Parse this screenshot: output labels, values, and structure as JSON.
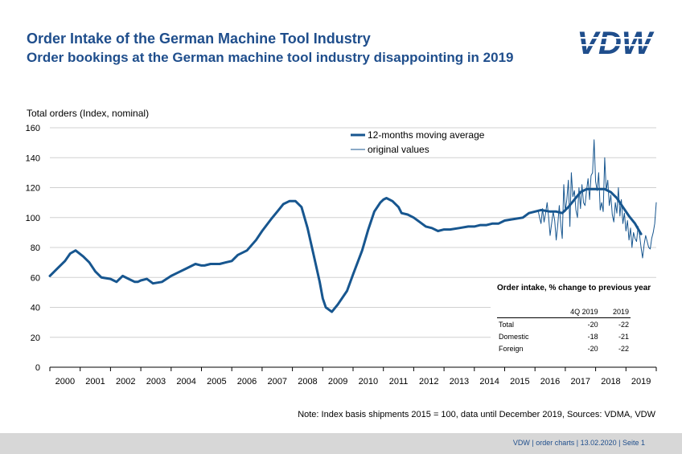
{
  "header": {
    "title": "Order Intake of the German Machine Tool Industry",
    "subtitle": "Order bookings at the German machine tool industry disappointing in 2019",
    "logo_text": "VDW"
  },
  "note": "Note: Index basis shipments  2015 = 100, data until December 2019, Sources: VDMA, VDW",
  "footer": "VDW  |  order charts  |   13.02.2020    |  Seite  1",
  "colors": {
    "accent": "#1f4e8c",
    "series": "#17568f"
  },
  "summary_table": {
    "title": "Order intake, % change to previous year",
    "columns": [
      "4Q 2019",
      "2019"
    ],
    "rows": [
      {
        "label": "Total",
        "q4": "-20",
        "year": "-22"
      },
      {
        "label": "Domestic",
        "q4": "-18",
        "year": "-21"
      },
      {
        "label": "Foreign",
        "q4": "-20",
        "year": "-22"
      }
    ]
  },
  "chart_data": {
    "type": "line",
    "ylabel": "Total orders (Index, nominal)",
    "xlabel": "",
    "ylim": [
      0,
      160
    ],
    "yticks": [
      0,
      20,
      40,
      60,
      80,
      100,
      120,
      140,
      160
    ],
    "xlim": [
      2000,
      2020
    ],
    "xticks": [
      "2000",
      "2001",
      "2002",
      "2003",
      "2004",
      "2005",
      "2006",
      "2007",
      "2008",
      "2009",
      "2010",
      "2011",
      "2012",
      "2013",
      "2014",
      "2015",
      "2016",
      "2017",
      "2018",
      "2019"
    ],
    "grid": true,
    "legend_position": "top-center",
    "series": [
      {
        "name": "12-months moving average",
        "x": [
          2000.0,
          2000.25,
          2000.5,
          2000.67,
          2000.85,
          2001.1,
          2001.3,
          2001.5,
          2001.7,
          2002.0,
          2002.1,
          2002.2,
          2002.4,
          2002.6,
          2002.8,
          2002.9,
          2003.0,
          2003.2,
          2003.4,
          2003.7,
          2004.0,
          2004.2,
          2004.5,
          2004.8,
          2005.0,
          2005.1,
          2005.3,
          2005.6,
          2005.8,
          2006.0,
          2006.2,
          2006.5,
          2006.8,
          2007.0,
          2007.3,
          2007.5,
          2007.7,
          2007.9,
          2008.1,
          2008.3,
          2008.5,
          2008.7,
          2008.9,
          2009.0,
          2009.1,
          2009.3,
          2009.5,
          2009.8,
          2010.0,
          2010.3,
          2010.5,
          2010.7,
          2010.9,
          2011.0,
          2011.1,
          2011.3,
          2011.5,
          2011.6,
          2011.8,
          2012.0,
          2012.2,
          2012.4,
          2012.6,
          2012.8,
          2013.0,
          2013.2,
          2013.5,
          2013.8,
          2014.0,
          2014.2,
          2014.4,
          2014.6,
          2014.8,
          2015.0,
          2015.3,
          2015.6,
          2015.8,
          2016.0,
          2016.2,
          2016.5,
          2016.7,
          2016.9,
          2017.1,
          2017.3,
          2017.5,
          2017.7,
          2017.9,
          2018.1,
          2018.3,
          2018.5,
          2018.7,
          2018.9,
          2019.1,
          2019.3,
          2019.5
        ],
        "values": [
          61,
          66,
          71,
          76,
          78,
          74,
          70,
          64,
          60,
          59,
          58,
          57,
          61,
          59,
          57,
          57,
          58,
          59,
          56,
          57,
          61,
          63,
          66,
          69,
          68,
          68,
          69,
          69,
          70,
          71,
          75,
          78,
          85,
          91,
          99,
          104,
          109,
          111,
          111,
          107,
          93,
          75,
          57,
          46,
          40,
          37,
          42,
          51,
          62,
          78,
          92,
          104,
          110,
          112,
          113,
          111,
          107,
          103,
          102,
          100,
          97,
          94,
          93,
          91,
          92,
          92,
          93,
          94,
          94,
          95,
          95,
          96,
          96,
          98,
          99,
          100,
          103,
          104,
          105,
          104,
          104,
          103,
          107,
          112,
          117,
          119,
          119,
          119,
          119,
          117,
          113,
          107,
          101,
          96,
          89
        ]
      },
      {
        "name": "original values",
        "x": [
          2016.1,
          2016.15,
          2016.2,
          2016.25,
          2016.3,
          2016.35,
          2016.4,
          2016.45,
          2016.5,
          2016.55,
          2016.6,
          2016.65,
          2016.7,
          2016.75,
          2016.8,
          2016.85,
          2016.9,
          2016.95,
          2017.0,
          2017.05,
          2017.1,
          2017.15,
          2017.2,
          2017.25,
          2017.3,
          2017.35,
          2017.4,
          2017.45,
          2017.5,
          2017.55,
          2017.6,
          2017.65,
          2017.7,
          2017.75,
          2017.8,
          2017.85,
          2017.9,
          2017.95,
          2018.0,
          2018.05,
          2018.1,
          2018.15,
          2018.2,
          2018.25,
          2018.3,
          2018.35,
          2018.4,
          2018.45,
          2018.5,
          2018.55,
          2018.6,
          2018.65,
          2018.7,
          2018.75,
          2018.8,
          2018.85,
          2018.9,
          2018.95,
          2019.0,
          2019.05,
          2019.1,
          2019.15,
          2019.2,
          2019.25,
          2019.3,
          2019.35,
          2019.4,
          2019.45,
          2019.5,
          2019.55,
          2019.6,
          2019.65,
          2019.7,
          2019.75,
          2019.8,
          2019.85,
          2019.9,
          2019.95,
          2020.0
        ],
        "values": [
          105,
          100,
          96,
          106,
          97,
          103,
          110,
          100,
          88,
          96,
          104,
          98,
          85,
          95,
          108,
          96,
          86,
          122,
          104,
          112,
          125,
          94,
          130,
          114,
          118,
          105,
          100,
          120,
          106,
          122,
          110,
          108,
          118,
          126,
          112,
          128,
          130,
          152,
          124,
          118,
          130,
          105,
          110,
          104,
          140,
          118,
          125,
          108,
          115,
          102,
          97,
          110,
          103,
          120,
          101,
          112,
          96,
          103,
          91,
          98,
          85,
          93,
          80,
          90,
          86,
          84,
          94,
          88,
          80,
          73,
          82,
          88,
          84,
          80,
          79,
          86,
          90,
          96,
          110
        ]
      }
    ]
  }
}
